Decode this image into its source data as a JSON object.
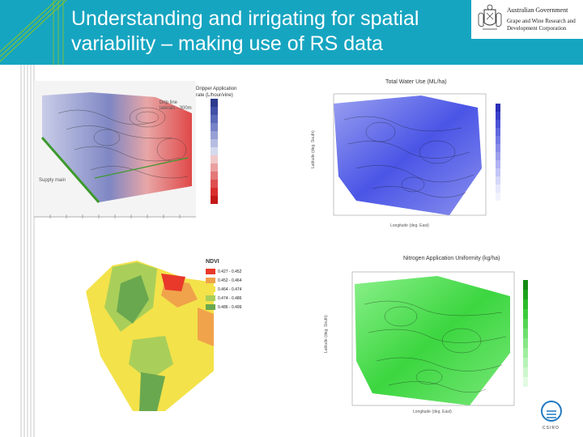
{
  "slide": {
    "title_line1": "Understanding and irrigating for spatial",
    "title_line2": "variability – making use of RS data"
  },
  "logo": {
    "line1": "Australian Government",
    "line2a": "Grape and Wine Research and",
    "line2b": "Development Corporation"
  },
  "panels": {
    "dripper": {
      "title_line1": "Dripper Application",
      "title_line2": "rate (L/hour/vine)",
      "annotation_dripline_1": "Drip line",
      "annotation_dripline_2": "laterals - 300m",
      "annotation_supply": "Supply main"
    },
    "water": {
      "title": "Total Water Use (ML/ha)",
      "ylabel": "Latitude (deg. South)",
      "xlabel": "Longitude (deg. East)"
    },
    "ndvi": {
      "title": "NDVI",
      "legend": [
        {
          "label": "0.427 - 0.452",
          "color": "#e8392a"
        },
        {
          "label": "0.452 - 0.464",
          "color": "#f0a34a"
        },
        {
          "label": "0.464 - 0.474",
          "color": "#f3e24a"
        },
        {
          "label": "0.474 - 0.486",
          "color": "#a9cf5a"
        },
        {
          "label": "0.486 - 0.499",
          "color": "#6aa84f"
        }
      ]
    },
    "nitrogen": {
      "title": "Nitrogen Application Uniformity (kg/ha)",
      "ylabel": "Latitude (deg. South)",
      "xlabel": "Longitude (deg. East)"
    }
  },
  "footer": {
    "brand": "CSIRO"
  }
}
